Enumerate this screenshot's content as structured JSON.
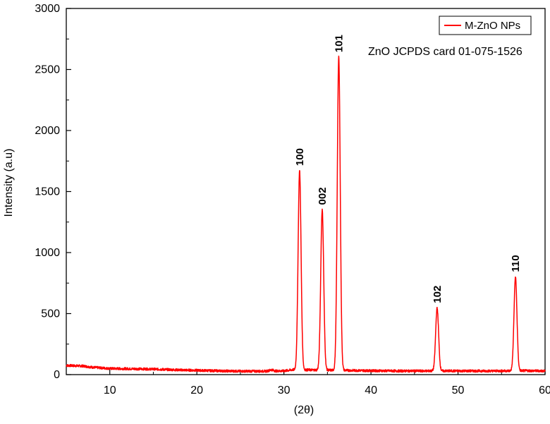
{
  "chart_data": {
    "type": "line",
    "title": "",
    "xlabel": "(2θ)",
    "ylabel": "Intensity (a.u)",
    "xlim": [
      5,
      60
    ],
    "ylim": [
      0,
      3000
    ],
    "x_ticks": [
      10,
      20,
      30,
      40,
      50,
      60
    ],
    "y_ticks": [
      0,
      500,
      1000,
      1500,
      2000,
      2500,
      3000
    ],
    "grid": false,
    "legend_position": "top-right",
    "series": [
      {
        "name": "M-ZnO NPs",
        "color": "#ff0000",
        "baseline": [
          [
            5,
            75
          ],
          [
            7,
            70
          ],
          [
            8,
            60
          ],
          [
            10,
            50
          ],
          [
            12,
            48
          ],
          [
            15,
            45
          ],
          [
            18,
            38
          ],
          [
            20,
            35
          ],
          [
            23,
            30
          ],
          [
            25,
            28
          ],
          [
            28,
            28
          ],
          [
            28.6,
            40
          ],
          [
            29,
            30
          ],
          [
            30,
            30
          ],
          [
            31,
            40
          ],
          [
            43,
            30
          ],
          [
            46,
            30
          ],
          [
            50,
            30
          ],
          [
            54,
            30
          ],
          [
            58,
            32
          ],
          [
            60,
            30
          ]
        ],
        "peaks": [
          {
            "x": 31.8,
            "y": 1670,
            "label": "100"
          },
          {
            "x": 34.4,
            "y": 1350,
            "label": "002"
          },
          {
            "x": 36.3,
            "y": 2600,
            "label": "101"
          },
          {
            "x": 47.6,
            "y": 545,
            "label": "102"
          },
          {
            "x": 56.6,
            "y": 800,
            "label": "110"
          }
        ]
      }
    ],
    "annotations": [
      "ZnO JCPDS card 01-075-1526"
    ]
  }
}
